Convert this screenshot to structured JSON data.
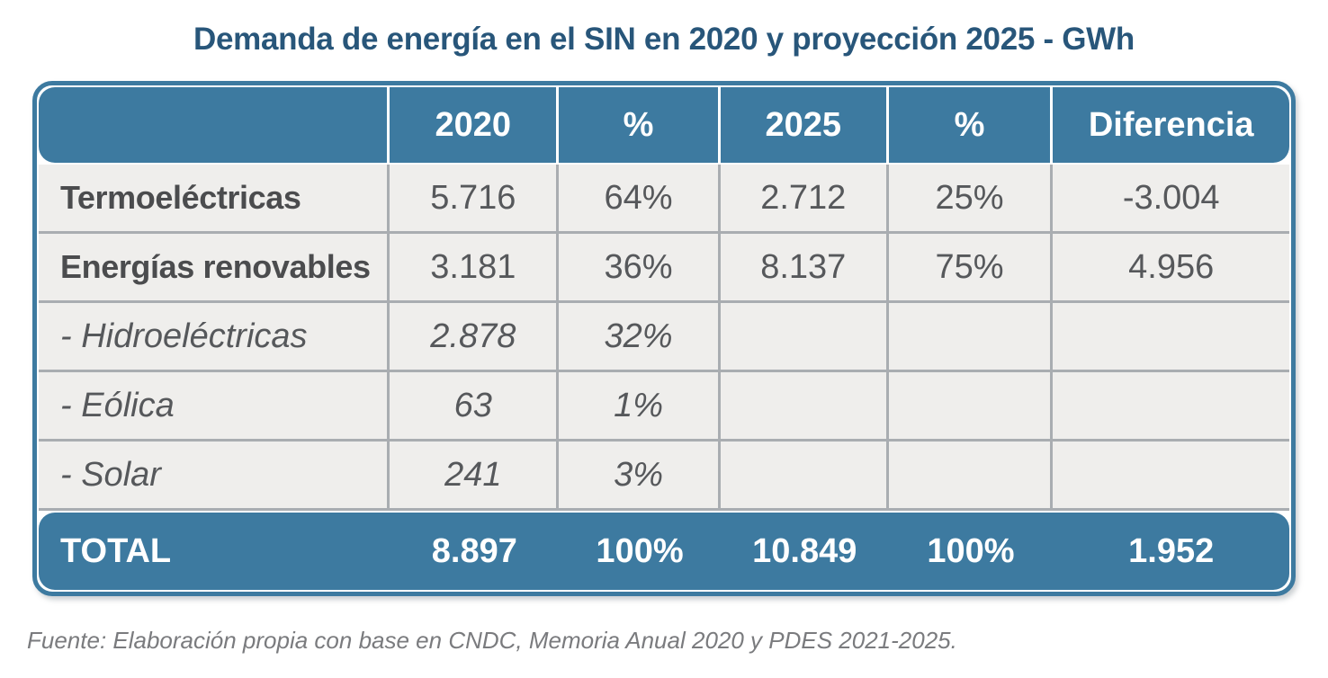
{
  "title": "Demanda de energía en el SIN en 2020 y proyección 2025 - GWh",
  "table": {
    "columns": [
      "",
      "2020",
      "%",
      "2025",
      "%",
      "Diferencia"
    ],
    "rows": [
      {
        "label": "Termoeléctricas",
        "style": "bold",
        "values": [
          "5.716",
          "64%",
          "2.712",
          "25%",
          "-3.004"
        ]
      },
      {
        "label": "Energías renovables",
        "style": "bold",
        "values": [
          "3.181",
          "36%",
          "8.137",
          "75%",
          "4.956"
        ]
      },
      {
        "label": "- Hidroeléctricas",
        "style": "italic",
        "values": [
          "2.878",
          "32%",
          "",
          "",
          ""
        ]
      },
      {
        "label": "- Eólica",
        "style": "italic",
        "values": [
          "63",
          "1%",
          "",
          "",
          ""
        ]
      },
      {
        "label": "- Solar",
        "style": "italic",
        "values": [
          "241",
          "3%",
          "",
          "",
          ""
        ]
      }
    ],
    "total": {
      "label": "TOTAL",
      "values": [
        "8.897",
        "100%",
        "10.849",
        "100%",
        "1.952"
      ]
    }
  },
  "source": "Fuente: Elaboración propia con base en CNDC, Memoria Anual 2020 y PDES 2021-2025.",
  "colors": {
    "band_blue": "#3d7aa0",
    "title_blue": "#28567a",
    "body_bg": "#efeeec",
    "grid_line": "#a9adb1",
    "text_gray": "#56585b",
    "label_gray": "#4b4c4e",
    "header_text": "#ffffff"
  },
  "chart_data": {
    "type": "table",
    "title": "Demanda de energía en el SIN en 2020 y proyección 2025 - GWh",
    "columns": [
      "",
      "2020",
      "%",
      "2025",
      "%",
      "Diferencia"
    ],
    "rows": [
      [
        "Termoeléctricas",
        "5.716",
        "64%",
        "2.712",
        "25%",
        "-3.004"
      ],
      [
        "Energías renovables",
        "3.181",
        "36%",
        "8.137",
        "75%",
        "4.956"
      ],
      [
        "- Hidroeléctricas",
        "2.878",
        "32%",
        "",
        "",
        ""
      ],
      [
        "- Eólica",
        "63",
        "1%",
        "",
        "",
        ""
      ],
      [
        "- Solar",
        "241",
        "3%",
        "",
        "",
        ""
      ],
      [
        "TOTAL",
        "8.897",
        "100%",
        "10.849",
        "100%",
        "1.952"
      ]
    ],
    "units": "GWh",
    "source": "Fuente: Elaboración propia con base en CNDC, Memoria Anual 2020 y PDES 2021-2025."
  }
}
